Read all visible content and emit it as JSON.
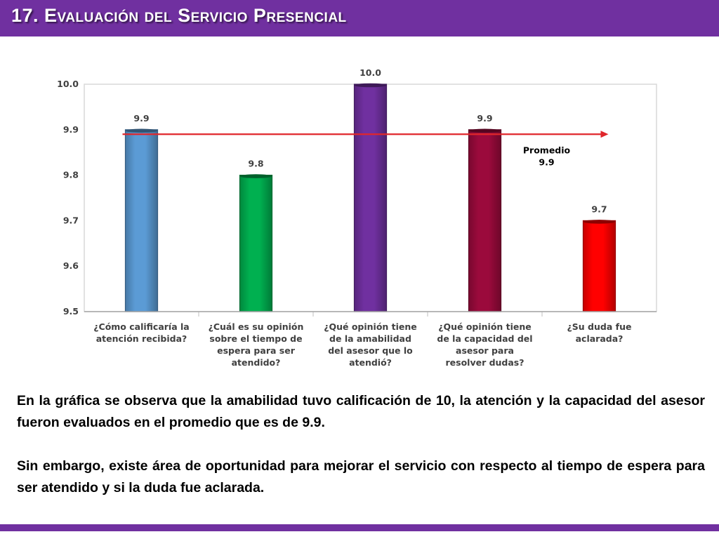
{
  "header": {
    "title": "17. Evaluación del Servicio Presencial"
  },
  "colors": {
    "banner": "#7030a0",
    "average_line": "#e0262b"
  },
  "chart_data": {
    "type": "bar",
    "title": "",
    "xlabel": "",
    "ylabel": "",
    "ylim": [
      9.5,
      10.0
    ],
    "yticks": [
      "9.5",
      "9.6",
      "9.7",
      "9.8",
      "9.9",
      "10.0"
    ],
    "grid": false,
    "legend": "none",
    "categories": [
      [
        "¿Cómo calificaría la",
        "atención recibida?"
      ],
      [
        "¿Cuál es su opinión",
        "sobre el tiempo de",
        "espera para ser",
        "atendido?"
      ],
      [
        "¿Qué opinión tiene",
        "de la amabilidad",
        "del asesor que lo",
        "atendió?"
      ],
      [
        "¿Qué opinión tiene",
        "de la capacidad del",
        "asesor para",
        "resolver dudas?"
      ],
      [
        "¿Su duda fue",
        "aclarada?"
      ]
    ],
    "values": [
      9.9,
      9.8,
      10.0,
      9.9,
      9.7
    ],
    "data_labels": [
      "9.9",
      "9.8",
      "10.0",
      "9.9",
      "9.7"
    ],
    "bar_colors": [
      "#5b9bd5",
      "#00b050",
      "#7030a0",
      "#9b0a3c",
      "#ff0000"
    ],
    "average": {
      "value": 9.89,
      "label": [
        "Promedio",
        "9.9"
      ]
    }
  },
  "summary": {
    "paragraphs": [
      "En la gráfica se observa que la amabilidad tuvo calificación de 10, la atención y la capacidad del asesor  fueron evaluados en el promedio que es de 9.9.",
      "Sin embargo, existe área de oportunidad para mejorar el servicio con respecto al tiempo de espera para ser atendido y si la duda fue aclarada."
    ]
  }
}
